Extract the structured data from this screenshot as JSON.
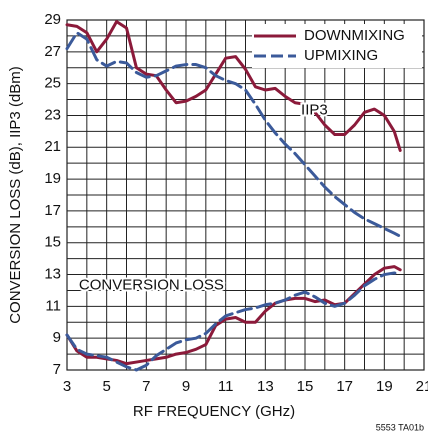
{
  "chart_data": {
    "type": "line",
    "xlabel": "RF FREQUENCY (GHz)",
    "ylabel": "CONVERSION LOSS (dB), IIP3 (dBm)",
    "footnote": "5553 TA01b",
    "xlim": [
      3,
      21
    ],
    "xticks": [
      3,
      5,
      7,
      9,
      11,
      13,
      15,
      17,
      19,
      21
    ],
    "xgrid": [
      4,
      6,
      8,
      10,
      12,
      14,
      16,
      18,
      20
    ],
    "ylim": [
      7,
      29
    ],
    "yticks": [
      7,
      9,
      11,
      13,
      15,
      17,
      19,
      21,
      23,
      25,
      27,
      29
    ],
    "ygrid": [
      8,
      10,
      12,
      14,
      16,
      18,
      20,
      22,
      24,
      26,
      28
    ],
    "grid": true,
    "legend": "upper right",
    "annotations": [
      {
        "text": "IIP3",
        "x": 14.8,
        "y": 23.3
      },
      {
        "text": "CONVERSION LOSS",
        "x": 3.6,
        "y": 12.3
      }
    ],
    "x": [
      3,
      3.5,
      4,
      4.5,
      5,
      5.5,
      6,
      6.5,
      7,
      7.5,
      8,
      8.5,
      9,
      9.5,
      10,
      10.5,
      11,
      11.5,
      12,
      12.5,
      13,
      13.5,
      14,
      14.5,
      15,
      15.5,
      16,
      16.5,
      17,
      17.5,
      18,
      18.5,
      19,
      19.5,
      19.8
    ],
    "series": [
      {
        "name": "DOWNMIXING",
        "color": "#8b1a3a",
        "dashed": false,
        "values": [
          28.7,
          28.6,
          28.2,
          27,
          27.8,
          28.9,
          28.5,
          26,
          25.6,
          25.5,
          24.6,
          23.8,
          23.9,
          24.2,
          24.6,
          25.6,
          26.6,
          26.7,
          25.9,
          24.8,
          24.6,
          24.7,
          24.2,
          23.8,
          23.7,
          23.2,
          22.4,
          21.8,
          21.8,
          22.4,
          23.2,
          23.4,
          23,
          22,
          20.8
        ]
      },
      {
        "name": "UPMIXING",
        "color": "#3b5a9a",
        "dashed": true,
        "values": [
          27.2,
          28.2,
          27.8,
          26.5,
          26.1,
          26.4,
          26.3,
          25.7,
          25.4,
          25.5,
          25.8,
          26.1,
          26.2,
          26.2,
          26,
          25.5,
          25.2,
          25,
          24.6,
          23.7,
          22.7,
          21.9,
          21.2,
          20.6,
          19.9,
          19.2,
          18.5,
          17.9,
          17.4,
          16.9,
          16.5,
          16.2,
          15.9,
          15.6,
          15.4
        ]
      },
      {
        "color": "#8b1a3a",
        "dashed": false,
        "values": [
          9.2,
          8.2,
          7.8,
          7.8,
          7.7,
          7.6,
          7.4,
          7.5,
          7.6,
          7.7,
          7.8,
          8,
          8.1,
          8.3,
          8.6,
          9.8,
          10.2,
          10.3,
          10,
          10,
          10.7,
          11.2,
          11.4,
          11.5,
          11.5,
          11.3,
          11.4,
          11.1,
          11.2,
          11.8,
          12.4,
          13,
          13.4,
          13.5,
          13.3
        ]
      },
      {
        "color": "#3b5a9a",
        "dashed": true,
        "values": [
          9.2,
          8.3,
          8,
          7.9,
          7.8,
          7.5,
          7.2,
          7,
          7.3,
          7.9,
          8.3,
          8.7,
          8.9,
          9,
          9.3,
          9.9,
          10.4,
          10.6,
          10.8,
          10.9,
          11.1,
          11.2,
          11.4,
          11.7,
          11.9,
          11.6,
          11.2,
          11,
          11.2,
          11.7,
          12.3,
          12.7,
          13,
          13.1,
          13
        ]
      }
    ]
  }
}
